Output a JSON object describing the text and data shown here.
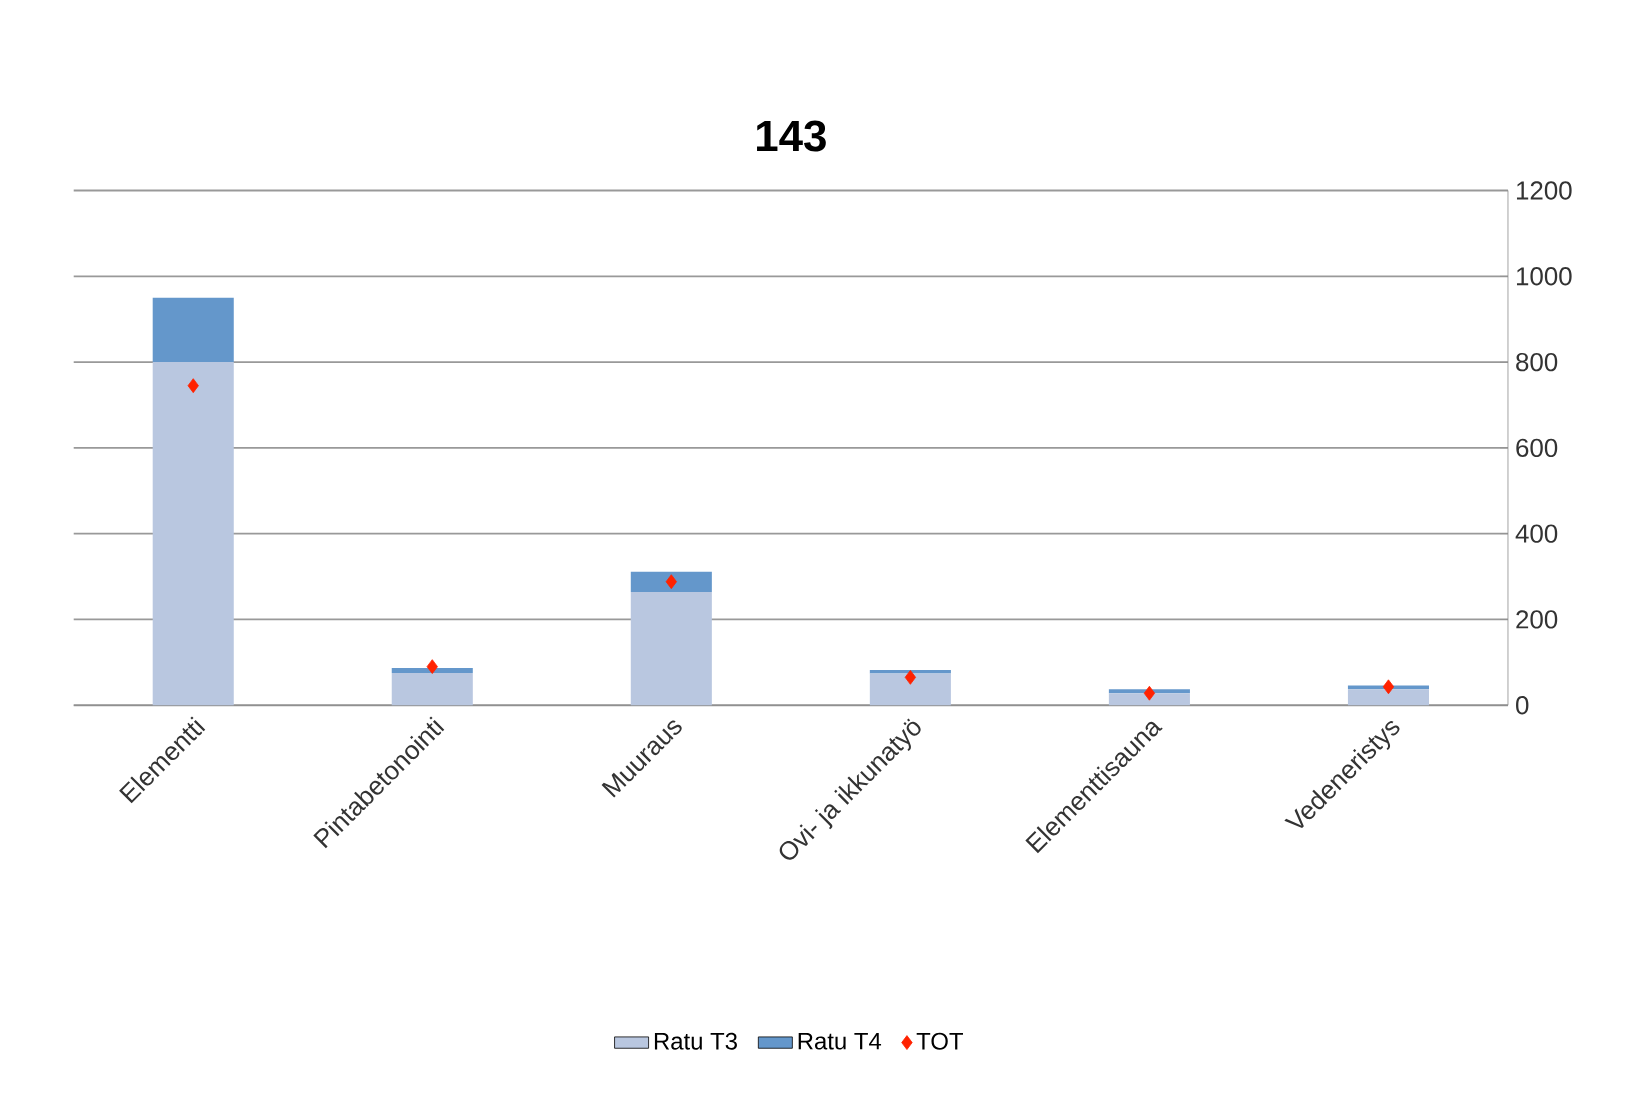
{
  "chart_data": {
    "type": "bar",
    "title": "143",
    "stacked": true,
    "categories": [
      "Elementti",
      "Pintabetonointi",
      "Muuraus",
      "Ovi- ja ikkunatyö",
      "Elementtisauna",
      "Vedeneristys"
    ],
    "series": [
      {
        "name": "Ratu T3",
        "color": "#b9c7e0",
        "values": [
          800,
          75,
          264,
          74,
          28,
          37
        ]
      },
      {
        "name": "Ratu T4",
        "color": "#6497cb",
        "values": [
          150,
          12,
          47,
          8,
          9,
          9
        ]
      },
      {
        "name": "TOT",
        "type": "scatter",
        "color": "#ff2200",
        "marker": "diamond",
        "values": [
          745,
          90,
          288,
          65,
          28,
          43
        ]
      }
    ],
    "ylim": [
      0,
      1200
    ],
    "yticks": [
      0,
      200,
      400,
      600,
      800,
      1000,
      1200
    ],
    "grid": "y",
    "legend": "bottom"
  }
}
